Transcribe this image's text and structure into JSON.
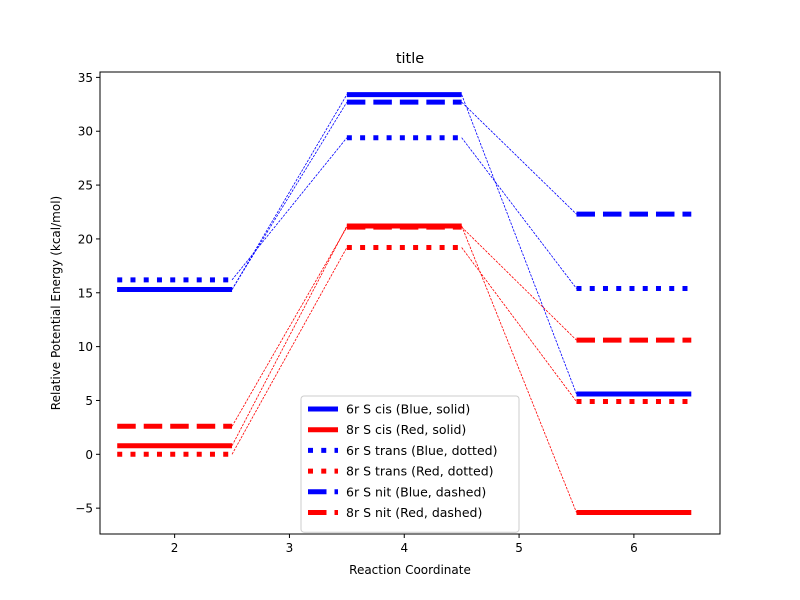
{
  "chart_data": {
    "type": "line",
    "title": "title",
    "xlabel": "Reaction Coordinate",
    "ylabel": "Relative Potential Energy (kcal/mol)",
    "xlim": [
      1.35,
      6.75
    ],
    "ylim": [
      -7.4,
      35.5
    ],
    "x_ticks": [
      2,
      3,
      4,
      5,
      6
    ],
    "y_ticks": [
      -5,
      0,
      5,
      10,
      15,
      20,
      25,
      30,
      35
    ],
    "x_tick_labels": [
      "2",
      "3",
      "4",
      "5",
      "6"
    ],
    "y_tick_labels": [
      "−5",
      "0",
      "5",
      "10",
      "15",
      "20",
      "25",
      "30",
      "35"
    ],
    "legend_position": "lower-center",
    "grid": false,
    "series": [
      {
        "name": "6r S cis (Blue, solid)",
        "color": "#0000ff",
        "style": "solid",
        "x": [
          2,
          4,
          6
        ],
        "values": [
          15.3,
          33.4,
          5.6
        ]
      },
      {
        "name": "8r S cis (Red, solid)",
        "color": "#ff0000",
        "style": "solid",
        "x": [
          2,
          4,
          6
        ],
        "values": [
          0.8,
          21.2,
          -5.4
        ]
      },
      {
        "name": "6r S trans (Blue, dotted)",
        "color": "#0000ff",
        "style": "dotted",
        "x": [
          2,
          4,
          6
        ],
        "values": [
          16.2,
          29.4,
          15.4
        ]
      },
      {
        "name": "8r S trans (Red, dotted)",
        "color": "#ff0000",
        "style": "dotted",
        "x": [
          2,
          4,
          6
        ],
        "values": [
          0.0,
          19.2,
          4.9
        ]
      },
      {
        "name": "6r S nit (Blue, dashed)",
        "color": "#0000ff",
        "style": "dashed",
        "x": [
          2,
          4,
          6
        ],
        "values": [
          15.3,
          32.7,
          22.3
        ]
      },
      {
        "name": "8r S nit (Red, dashed)",
        "color": "#ff0000",
        "style": "dashed",
        "x": [
          2,
          4,
          6
        ],
        "values": [
          2.6,
          21.1,
          10.6
        ]
      }
    ]
  }
}
